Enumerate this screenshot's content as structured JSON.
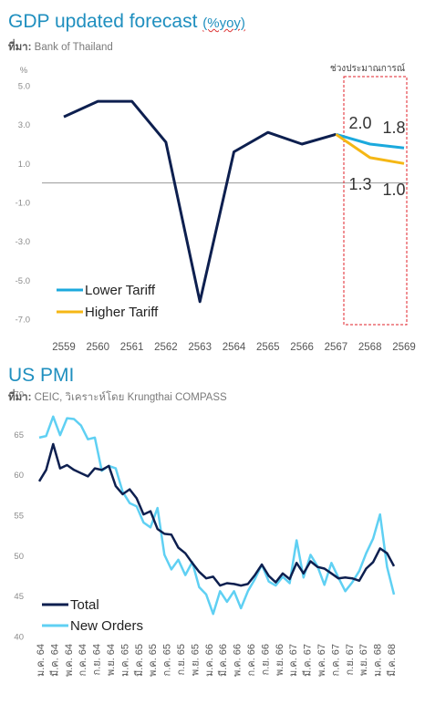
{
  "gdp": {
    "title": "GDP updated forecast",
    "unit": "(%yoy)",
    "source_prefix": "ที่มา:",
    "source": "Bank of Thailand",
    "y_unit": "%",
    "forecast_label": "ช่วงประมาณการณ์",
    "colors": {
      "actual": "#0d1f4f",
      "lower": "#1ba9dd",
      "higher": "#f5b715",
      "box": "#e0202a",
      "zero": "#999999"
    }
  },
  "pmi": {
    "title": "US PMI",
    "source_prefix": "ที่มา:",
    "source": "CEIC, วิเคราะห์โดย Krungthai COMPASS",
    "colors": {
      "total": "#0d1f4f",
      "new_orders": "#5fd0f3"
    }
  },
  "chart_data": [
    {
      "type": "line",
      "title": "GDP updated forecast (%yoy)",
      "ylabel": "%",
      "ylim": [
        -7.0,
        5.0
      ],
      "yticks": [
        "5.0",
        "3.0",
        "1.0",
        "-1.0",
        "-3.0",
        "-5.0",
        "-7.0"
      ],
      "categories": [
        "2559",
        "2560",
        "2561",
        "2562",
        "2563",
        "2564",
        "2565",
        "2566",
        "2567",
        "2568",
        "2569"
      ],
      "series": [
        {
          "key": "actual",
          "values": [
            3.4,
            4.2,
            4.2,
            2.1,
            -6.1,
            1.6,
            2.6,
            2.0,
            2.5,
            null,
            null
          ]
        },
        {
          "key": "lower",
          "name": "Lower Tariff",
          "values": [
            null,
            null,
            null,
            null,
            null,
            null,
            null,
            null,
            2.5,
            2.0,
            1.8
          ]
        },
        {
          "key": "higher",
          "name": "Higher Tariff",
          "values": [
            null,
            null,
            null,
            null,
            null,
            null,
            null,
            null,
            2.5,
            1.3,
            1.0
          ]
        }
      ],
      "data_labels": {
        "lower_2568": "2.0",
        "lower_2569": "1.8",
        "higher_2568": "1.3",
        "higher_2569": "1.0"
      },
      "legend": "bottom-left",
      "grid": false
    },
    {
      "type": "line",
      "title": "US PMI",
      "ylim": [
        40,
        70
      ],
      "yticks": [
        "70",
        "65",
        "60",
        "55",
        "50",
        "45",
        "40"
      ],
      "x_labels": [
        "ม.ค. 64",
        "มี.ค. 64",
        "พ.ค. 64",
        "ก.ค. 64",
        "ก.ย. 64",
        "พ.ย. 64",
        "ม.ค. 65",
        "มี.ค. 65",
        "พ.ค. 65",
        "ก.ค. 65",
        "ก.ย. 65",
        "พ.ย. 65",
        "ม.ค. 66",
        "มี.ค. 66",
        "พ.ค. 66",
        "ก.ค. 66",
        "ก.ย. 66",
        "พ.ย. 66",
        "ม.ค. 67",
        "มี.ค. 67",
        "พ.ค. 67",
        "ก.ค. 67",
        "ก.ย. 67",
        "พ.ย. 67",
        "ม.ค. 68",
        "มี.ค. 68"
      ],
      "series": [
        {
          "key": "total",
          "name": "Total",
          "values": [
            59.2,
            60.6,
            63.8,
            60.8,
            61.2,
            60.6,
            60.2,
            59.8,
            60.8,
            60.6,
            61.1,
            58.6,
            57.6,
            58.2,
            57.1,
            55.1,
            55.5,
            53.3,
            52.7,
            52.6,
            51.0,
            50.3,
            49.1,
            48.0,
            47.2,
            47.4,
            46.3,
            46.6,
            46.5,
            46.3,
            46.5,
            47.6,
            48.9,
            47.5,
            46.7,
            47.8,
            47.1,
            49.1,
            47.8,
            49.3,
            48.6,
            48.4,
            47.8,
            47.2,
            47.3,
            47.2,
            46.9,
            48.4,
            49.2,
            50.9,
            50.3,
            48.7
          ]
        },
        {
          "key": "new_orders",
          "name": "New Orders",
          "values": [
            64.6,
            64.8,
            67.2,
            64.9,
            67.0,
            66.9,
            66.1,
            64.4,
            64.6,
            60.5,
            61.1,
            60.8,
            57.9,
            56.5,
            56.1,
            54.1,
            53.5,
            55.9,
            50.1,
            48.3,
            49.5,
            47.6,
            49.2,
            46.1,
            45.2,
            42.8,
            45.6,
            44.3,
            45.6,
            43.5,
            45.6,
            47.1,
            48.9,
            46.8,
            46.3,
            47.4,
            46.6,
            51.9,
            47.3,
            50.1,
            48.7,
            46.4,
            49.1,
            47.3,
            45.6,
            46.7,
            48.1,
            50.3,
            52.1,
            55.1,
            48.6,
            45.2
          ]
        }
      ],
      "legend": "bottom-left",
      "grid": false
    }
  ]
}
